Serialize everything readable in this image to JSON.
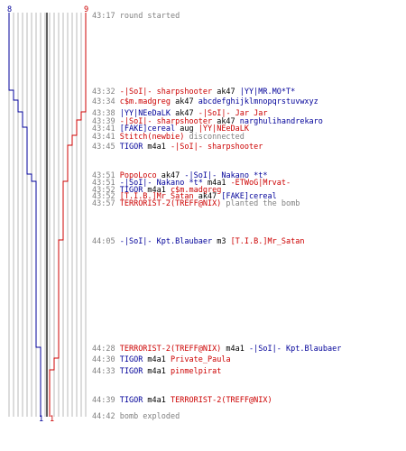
{
  "colors": {
    "team_red": "#cc0000",
    "team_blue": "#000099",
    "grid": "#b8b8b8",
    "center_line": "#606060",
    "time": "#808080"
  },
  "counts": {
    "blue_start": "8",
    "red_start": "9",
    "blue_end": "1",
    "red_end": "1"
  },
  "events": [
    {
      "time": "43:17",
      "parts": [
        {
          "t": "round started",
          "c": "gray"
        }
      ]
    },
    {
      "time": "43:32",
      "parts": [
        {
          "t": "-|SoI|- sharpshooter",
          "c": "t1"
        },
        {
          "t": " ak47 ",
          "c": "blk"
        },
        {
          "t": "|YY|MR.MO*T*",
          "c": "t2"
        }
      ]
    },
    {
      "time": "43:34",
      "parts": [
        {
          "t": "c$m.madgreg",
          "c": "t1"
        },
        {
          "t": " ak47 ",
          "c": "blk"
        },
        {
          "t": "abcdefghijklmnopqrstuvwxyz",
          "c": "t2"
        }
      ]
    },
    {
      "time": "43:38",
      "parts": [
        {
          "t": "|YY|NEeDaLK",
          "c": "t2"
        },
        {
          "t": " ak47 ",
          "c": "blk"
        },
        {
          "t": "-|SoI|- Jar Jar",
          "c": "t1"
        }
      ]
    },
    {
      "time": "43:39",
      "parts": [
        {
          "t": "-|SoI|- sharpshooter",
          "c": "t1"
        },
        {
          "t": " ak47 ",
          "c": "blk"
        },
        {
          "t": "narghulihandrekaro",
          "c": "t2"
        }
      ]
    },
    {
      "time": "43:41",
      "parts": [
        {
          "t": "[FAKE]cereal",
          "c": "t2"
        },
        {
          "t": " aug ",
          "c": "blk"
        },
        {
          "t": "|YY|NEeDaLK",
          "c": "t1"
        }
      ]
    },
    {
      "time": "43:41",
      "parts": [
        {
          "t": "Stitch(newbie)",
          "c": "t1"
        },
        {
          "t": " disconnected",
          "c": "gray"
        }
      ]
    },
    {
      "time": "43:45",
      "parts": [
        {
          "t": "TIGOR",
          "c": "t2"
        },
        {
          "t": " m4a1 ",
          "c": "blk"
        },
        {
          "t": "-|SoI|- sharpshooter",
          "c": "t1"
        }
      ]
    },
    {
      "time": "43:51",
      "parts": [
        {
          "t": "PopoLoco",
          "c": "t1"
        },
        {
          "t": " ak47 ",
          "c": "blk"
        },
        {
          "t": "-|SoI|- Nakano *t*",
          "c": "t2"
        }
      ]
    },
    {
      "time": "43:51",
      "parts": [
        {
          "t": "-|SoI|- Nakano *t*",
          "c": "t2"
        },
        {
          "t": " m4a1 ",
          "c": "blk"
        },
        {
          "t": "-ETWoG|Mrvat-",
          "c": "t1"
        }
      ]
    },
    {
      "time": "43:52",
      "parts": [
        {
          "t": "TIGOR",
          "c": "t2"
        },
        {
          "t": " m4a1 ",
          "c": "blk"
        },
        {
          "t": "c$m.madgreg",
          "c": "t1"
        }
      ]
    },
    {
      "time": "43:52",
      "parts": [
        {
          "t": "[T.I.B.]Mr_Satan",
          "c": "t1"
        },
        {
          "t": " ak47 ",
          "c": "blk"
        },
        {
          "t": "[FAKE]cereal",
          "c": "t2"
        }
      ]
    },
    {
      "time": "43:57",
      "parts": [
        {
          "t": "TERRORIST-2(TREFF@NIX)",
          "c": "t1"
        },
        {
          "t": " planted the bomb",
          "c": "gray"
        }
      ]
    },
    {
      "time": "44:05",
      "parts": [
        {
          "t": "-|SoI|- Kpt.Blaubaer",
          "c": "t2"
        },
        {
          "t": " m3 ",
          "c": "blk"
        },
        {
          "t": "[T.I.B.]Mr_Satan",
          "c": "t1"
        }
      ]
    },
    {
      "time": "44:28",
      "parts": [
        {
          "t": "TERRORIST-2(TREFF@NIX)",
          "c": "t1"
        },
        {
          "t": " m4a1 ",
          "c": "blk"
        },
        {
          "t": "-|SoI|- Kpt.Blaubaer",
          "c": "t2"
        }
      ]
    },
    {
      "time": "44:30",
      "parts": [
        {
          "t": "TIGOR",
          "c": "t2"
        },
        {
          "t": " m4a1 ",
          "c": "blk"
        },
        {
          "t": "Private_Paula",
          "c": "t1"
        }
      ]
    },
    {
      "time": "44:33",
      "parts": [
        {
          "t": "TIGOR",
          "c": "t2"
        },
        {
          "t": " m4a1 ",
          "c": "blk"
        },
        {
          "t": "pinmelpirat",
          "c": "t1"
        }
      ]
    },
    {
      "time": "44:39",
      "parts": [
        {
          "t": "TIGOR",
          "c": "t2"
        },
        {
          "t": " m4a1 ",
          "c": "blk"
        },
        {
          "t": "TERRORIST-2(TREFF@NIX)",
          "c": "t1"
        }
      ]
    },
    {
      "time": "44:42",
      "parts": [
        {
          "t": "bomb exploded",
          "c": "gray"
        }
      ]
    }
  ]
}
